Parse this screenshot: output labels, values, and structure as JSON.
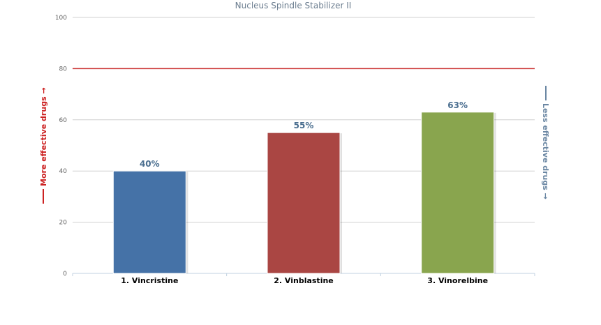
{
  "chart_data": {
    "type": "bar",
    "title": "Nucleus Spindle Stabilizer II",
    "categories": [
      "1. Vincristine",
      "2. Vinblastine",
      "3. Vinorelbine"
    ],
    "values": [
      40,
      55,
      63
    ],
    "data_labels": [
      "40%",
      "55%",
      "63%"
    ],
    "colors": [
      "#4572a7",
      "#aa4643",
      "#89a54e"
    ],
    "ylim": [
      0,
      100
    ],
    "yticks": [
      0,
      20,
      40,
      60,
      80,
      100
    ],
    "reference_line": {
      "value": 80,
      "color": "#cc3333"
    },
    "left_axis_label": "More effective drugs →",
    "left_axis_label_color": "#cc2222",
    "right_axis_label": "Less effective drugs →",
    "right_axis_label_color": "#6b87a3",
    "grid": true,
    "legend": "none"
  }
}
